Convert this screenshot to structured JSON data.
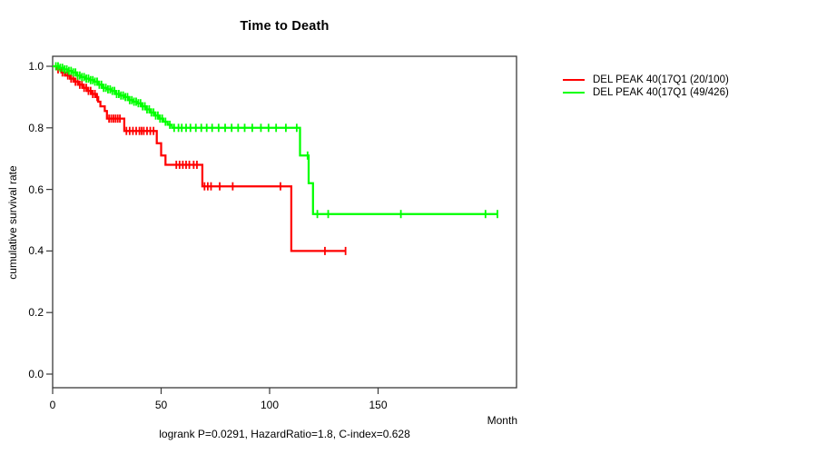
{
  "chart_data": {
    "type": "line",
    "subtype": "kaplan-meier-step",
    "title": "Time to Death",
    "xlabel": "Month",
    "ylabel": "cumulative survival rate",
    "annotation": "logrank P=0.0291, HazardRatio=1.8, C-index=0.628",
    "x_ticks": [
      0,
      50,
      100,
      150
    ],
    "y_ticks": [
      1.0,
      0.8,
      0.6,
      0.4,
      0.2,
      0.0
    ],
    "xlim": [
      0,
      214
    ],
    "ylim": [
      -0.04,
      1.03
    ],
    "grid": false,
    "legend_position": "outside-right",
    "axis_color": "#3a3a3a",
    "series": [
      {
        "name": "DEL PEAK 40(17Q1 (20/100)",
        "color": "#ff0000",
        "events_total": "20/100",
        "end_month": 135,
        "steps": [
          [
            0,
            1.0
          ],
          [
            2,
            0.99
          ],
          [
            4,
            0.98
          ],
          [
            6,
            0.97
          ],
          [
            8,
            0.96
          ],
          [
            10,
            0.95
          ],
          [
            12,
            0.94
          ],
          [
            14,
            0.93
          ],
          [
            16,
            0.92
          ],
          [
            18,
            0.91
          ],
          [
            20,
            0.9
          ],
          [
            21,
            0.885
          ],
          [
            22,
            0.87
          ],
          [
            24,
            0.855
          ],
          [
            25,
            0.83
          ],
          [
            33,
            0.79
          ],
          [
            48,
            0.75
          ],
          [
            50,
            0.71
          ],
          [
            52,
            0.68
          ],
          [
            69,
            0.61
          ],
          [
            110,
            0.4
          ]
        ],
        "censor_months": [
          2.5,
          4.5,
          5.5,
          7,
          8.5,
          9.5,
          10.5,
          11.5,
          12.5,
          13.5,
          14.5,
          15.5,
          16.5,
          17.5,
          18.5,
          19.5,
          20.5,
          26,
          27,
          28,
          29,
          30,
          31,
          34,
          35.5,
          37,
          38.5,
          40,
          41,
          42,
          43.5,
          45,
          46.5,
          57,
          58.5,
          60,
          61.5,
          63,
          65,
          66.5,
          70,
          71.5,
          73,
          77,
          83,
          105,
          125.5,
          135
        ]
      },
      {
        "name": "DEL PEAK 40(17Q1 (49/426)",
        "color": "#00ff00",
        "events_total": "49/426",
        "end_month": 205,
        "steps": [
          [
            0,
            1.0
          ],
          [
            3,
            0.995
          ],
          [
            5,
            0.99
          ],
          [
            7,
            0.985
          ],
          [
            9,
            0.98
          ],
          [
            11,
            0.97
          ],
          [
            13,
            0.965
          ],
          [
            15,
            0.96
          ],
          [
            17,
            0.955
          ],
          [
            19,
            0.95
          ],
          [
            21,
            0.94
          ],
          [
            23,
            0.93
          ],
          [
            25,
            0.925
          ],
          [
            27,
            0.92
          ],
          [
            29,
            0.91
          ],
          [
            31,
            0.905
          ],
          [
            33,
            0.9
          ],
          [
            35,
            0.89
          ],
          [
            37,
            0.885
          ],
          [
            39,
            0.88
          ],
          [
            41,
            0.87
          ],
          [
            43,
            0.86
          ],
          [
            45,
            0.85
          ],
          [
            47,
            0.84
          ],
          [
            49,
            0.83
          ],
          [
            51,
            0.82
          ],
          [
            53,
            0.81
          ],
          [
            55,
            0.8
          ],
          [
            114,
            0.71
          ],
          [
            118,
            0.62
          ],
          [
            120,
            0.52
          ]
        ],
        "censor_months": [
          1.5,
          2.5,
          3.5,
          4.5,
          5.5,
          6.5,
          7.5,
          8.5,
          9.5,
          10.5,
          11.5,
          12.5,
          13.5,
          14.5,
          15.5,
          16.5,
          17.5,
          18.5,
          19.5,
          20.5,
          21.5,
          22.5,
          23.5,
          24.5,
          25.5,
          26.5,
          27.5,
          28.5,
          29.5,
          30.5,
          31.5,
          32.5,
          33.5,
          34.5,
          35.5,
          36.5,
          37.5,
          38.5,
          39.5,
          40.5,
          41.5,
          42.5,
          43.5,
          44.5,
          45.5,
          46.5,
          47.5,
          48.5,
          49.5,
          50.5,
          52,
          54,
          56,
          58,
          59.5,
          61.5,
          63.5,
          66,
          68.5,
          71,
          73.5,
          76.5,
          79.5,
          82.5,
          85.5,
          88.5,
          92,
          96,
          99.5,
          103,
          107.5,
          112.5,
          117.5,
          122,
          127,
          160.5,
          199.5,
          205
        ]
      }
    ]
  }
}
